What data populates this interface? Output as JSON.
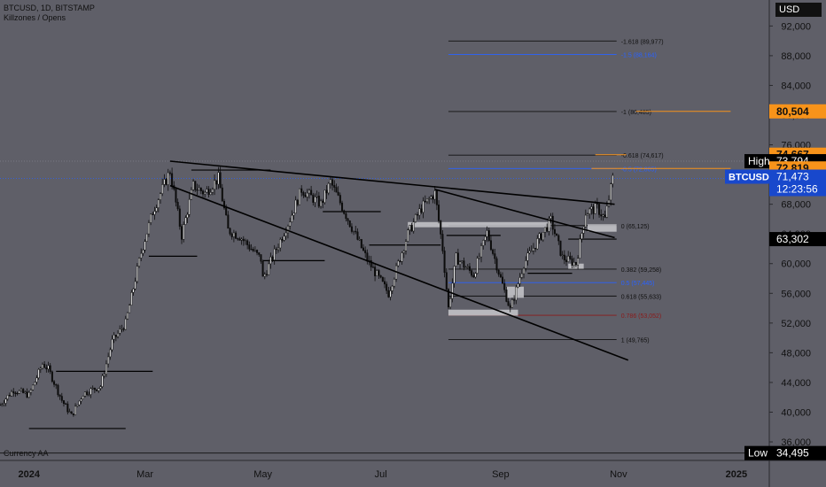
{
  "header": {
    "symbol_line": "BTCUSD, 1D, BITSTAMP",
    "indicator_line": "Killzones / Opens"
  },
  "footer": {
    "currency_label": "Currency AA"
  },
  "price_scale": {
    "currency": "USD",
    "ticks": [
      "92,000",
      "88,000",
      "84,000",
      "80,000",
      "76,000",
      "72,000",
      "68,000",
      "64,000",
      "60,000",
      "56,000",
      "52,000",
      "48,000",
      "44,000",
      "40,000",
      "36,000"
    ]
  },
  "time_axis": {
    "labels": [
      "2024",
      "Mar",
      "May",
      "Jul",
      "Sep",
      "Nov",
      "2025"
    ]
  },
  "price_tags": [
    {
      "id": "t80504",
      "text": "80,504",
      "value": 80504,
      "bg": "#f7931a",
      "fg": "#111111"
    },
    {
      "id": "t74667",
      "text": "74,667",
      "value": 74667,
      "bg": "#f7931a",
      "fg": "#111111"
    },
    {
      "id": "thigh",
      "label": "High",
      "text": "73,794",
      "value": 73794,
      "bg": "#000000",
      "fg": "#ffffff"
    },
    {
      "id": "t72819",
      "text": "72,819",
      "value": 72819,
      "bg": "#f7931a",
      "fg": "#111111"
    },
    {
      "id": "tbtc",
      "label": "BTCUSD",
      "text": "71,473",
      "sub": "12:23:56",
      "value": 71473,
      "bg": "#1848cc",
      "fg": "#ffffff"
    },
    {
      "id": "t63302",
      "text": "63,302",
      "value": 63302,
      "bg": "#000000",
      "fg": "#ffffff"
    },
    {
      "id": "tlow",
      "label": "Low",
      "text": "34,495",
      "value": 34495,
      "bg": "#000000",
      "fg": "#ffffff"
    }
  ],
  "fib_levels": [
    {
      "label": "-1.618 (89,977)",
      "value": 89977,
      "color": "#111111"
    },
    {
      "label": "-1.5 (88,164)",
      "value": 88164,
      "color": "#2962ff"
    },
    {
      "label": "-1 (80,485)",
      "value": 80485,
      "color": "#111111"
    },
    {
      "label": "-0.618 (74,617)",
      "value": 74617,
      "color": "#111111"
    },
    {
      "label": "-0.5 (72,805)",
      "value": 72805,
      "color": "#2962ff"
    },
    {
      "label": "0 (65,125)",
      "value": 65125,
      "color": "#111111"
    },
    {
      "label": "0.382 (59,258)",
      "value": 59258,
      "color": "#111111"
    },
    {
      "label": "0.5 (57,445)",
      "value": 57445,
      "color": "#2962ff"
    },
    {
      "label": "0.618 (55,633)",
      "value": 55633,
      "color": "#111111"
    },
    {
      "label": "0.786 (53,052)",
      "value": 53052,
      "color": "#8b1a1a"
    },
    {
      "label": "1 (49,765)",
      "value": 49765,
      "color": "#111111"
    }
  ],
  "colors": {
    "background": "#5f5f68",
    "candle": "#0d0d0d",
    "trendline": "#000000",
    "box": "#c8c8cc",
    "orange": "#f7931a",
    "blue": "#2962ff"
  },
  "chart_data": {
    "type": "candlestick",
    "title": "BTCUSD, 1D, BITSTAMP",
    "ylim": [
      33500,
      95500
    ],
    "x_range": [
      "2023-12-17",
      "2025-01-18"
    ],
    "x_tick_dates": [
      "2024-01-01",
      "2024-03-01",
      "2024-05-01",
      "2024-07-01",
      "2024-09-01",
      "2024-11-01",
      "2025-01-01"
    ],
    "series": [
      {
        "values": [
          [
            "2023-12-17",
            41000
          ],
          [
            "2023-12-24",
            43000
          ],
          [
            "2024-01-01",
            42300
          ],
          [
            "2024-01-08",
            46500
          ],
          [
            "2024-01-11",
            45800
          ],
          [
            "2024-01-18",
            41600
          ],
          [
            "2024-01-23",
            39500
          ],
          [
            "2024-01-29",
            42500
          ],
          [
            "2024-02-07",
            43500
          ],
          [
            "2024-02-13",
            49500
          ],
          [
            "2024-02-20",
            52000
          ],
          [
            "2024-02-28",
            61500
          ],
          [
            "2024-03-05",
            67000
          ],
          [
            "2024-03-14",
            72500
          ],
          [
            "2024-03-20",
            63800
          ],
          [
            "2024-03-26",
            70500
          ],
          [
            "2024-04-01",
            69500
          ],
          [
            "2024-04-08",
            71500
          ],
          [
            "2024-04-13",
            64500
          ],
          [
            "2024-04-19",
            63700
          ],
          [
            "2024-04-30",
            60600
          ],
          [
            "2024-05-01",
            58000
          ],
          [
            "2024-05-08",
            62000
          ],
          [
            "2024-05-15",
            66000
          ],
          [
            "2024-05-21",
            70000
          ],
          [
            "2024-05-31",
            68000
          ],
          [
            "2024-06-05",
            71000
          ],
          [
            "2024-06-14",
            66000
          ],
          [
            "2024-06-24",
            60500
          ],
          [
            "2024-07-05",
            56000
          ],
          [
            "2024-07-15",
            64000
          ],
          [
            "2024-07-22",
            67500
          ],
          [
            "2024-07-29",
            69500
          ],
          [
            "2024-08-02",
            62000
          ],
          [
            "2024-08-05",
            54000
          ],
          [
            "2024-08-09",
            60800
          ],
          [
            "2024-08-18",
            58500
          ],
          [
            "2024-08-25",
            64200
          ],
          [
            "2024-09-01",
            58000
          ],
          [
            "2024-09-06",
            53800
          ],
          [
            "2024-09-13",
            60000
          ],
          [
            "2024-09-20",
            63000
          ],
          [
            "2024-09-27",
            65800
          ],
          [
            "2024-10-03",
            60800
          ],
          [
            "2024-10-10",
            60000
          ],
          [
            "2024-10-15",
            66900
          ],
          [
            "2024-10-21",
            67500
          ],
          [
            "2024-10-25",
            66000
          ],
          [
            "2024-10-29",
            71473
          ]
        ]
      }
    ],
    "trendlines": [
      {
        "from": [
          "2024-03-14",
          73800
        ],
        "to": [
          "2024-10-30",
          68000
        ]
      },
      {
        "from": [
          "2024-03-14",
          70500
        ],
        "to": [
          "2024-11-06",
          47000
        ]
      },
      {
        "from": [
          "2024-07-29",
          70000
        ],
        "to": [
          "2024-10-30",
          63500
        ]
      }
    ],
    "horizontal_levels": [
      {
        "from": "2024-01-01",
        "to": "2024-02-20",
        "value": 37800
      },
      {
        "from": "2024-01-15",
        "to": "2024-03-05",
        "value": 45500
      },
      {
        "from": "2024-03-03",
        "to": "2024-03-28",
        "value": 61000
      },
      {
        "from": "2024-03-25",
        "to": "2024-05-05",
        "value": 72600
      },
      {
        "from": "2024-05-01",
        "to": "2024-06-02",
        "value": 60400
      },
      {
        "from": "2024-06-01",
        "to": "2024-07-01",
        "value": 67000
      },
      {
        "from": "2024-06-25",
        "to": "2024-08-01",
        "value": 62500
      },
      {
        "from": "2024-08-04",
        "to": "2024-09-01",
        "value": 63800
      },
      {
        "from": "2024-09-15",
        "to": "2024-10-08",
        "value": 58700
      },
      {
        "from": "2024-10-06",
        "to": "2024-10-31",
        "value": 63302
      }
    ]
  }
}
